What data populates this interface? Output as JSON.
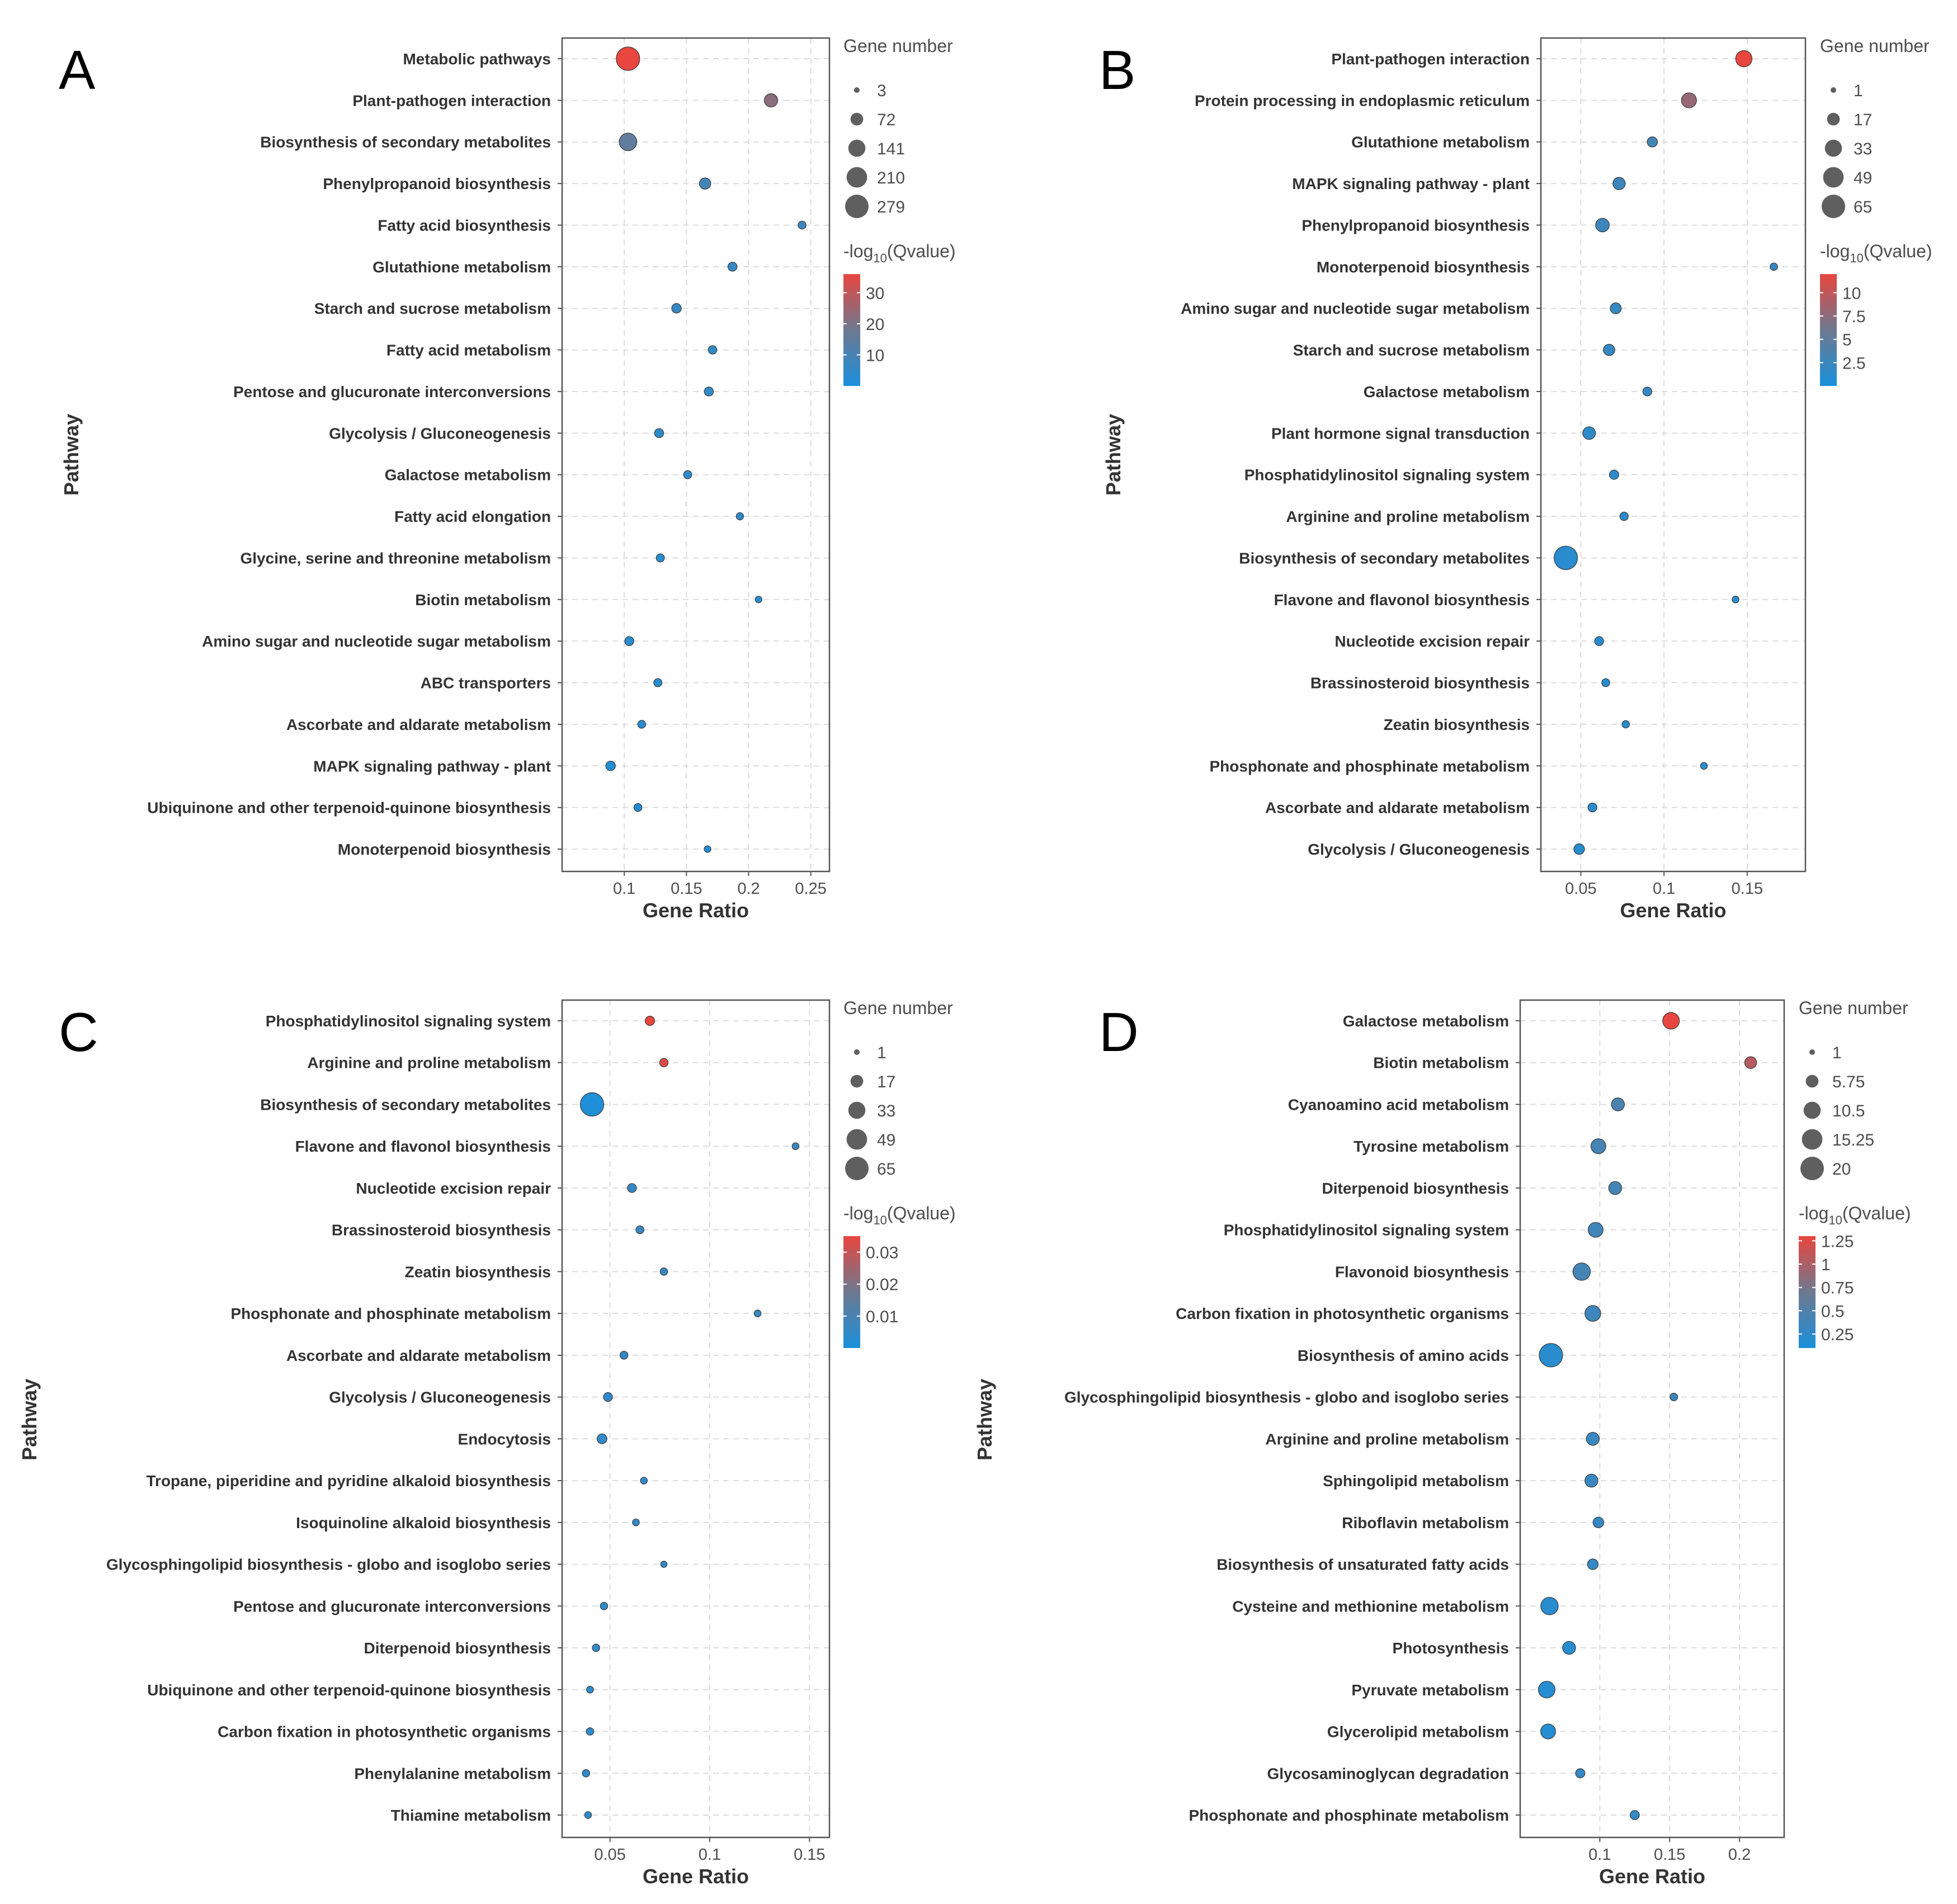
{
  "colors": {
    "low": "#1a90dc",
    "mid": "#6e7990",
    "high": "#e8463f",
    "grid": "#dcdcdc",
    "frame": "#555555"
  },
  "chart_data": [
    {
      "panel": "A",
      "type": "scatter",
      "xlabel": "Gene Ratio",
      "ylabel": "Pathway",
      "size_legend_title": "Gene number",
      "color_legend_title": "-log10(Qvalue)",
      "xlim": [
        0.05,
        0.265
      ],
      "xticks": [
        0.1,
        0.15,
        0.2,
        0.25
      ],
      "xtick_labels": [
        "0.1",
        "0.15",
        "0.2",
        "0.25"
      ],
      "size_range": [
        3,
        279
      ],
      "size_breaks": [
        3,
        72,
        141,
        210,
        279
      ],
      "size_break_labels": [
        "3",
        "72",
        "141",
        "210",
        "279"
      ],
      "color_range": [
        0,
        36
      ],
      "color_breaks": [
        10,
        20,
        30
      ],
      "color_break_labels": [
        "10",
        "20",
        "30"
      ],
      "points": [
        {
          "pathway": "Metabolic pathways",
          "ratio": 0.103,
          "genes": 279,
          "q": 36
        },
        {
          "pathway": "Plant-pathogen interaction",
          "ratio": 0.218,
          "genes": 80,
          "q": 22
        },
        {
          "pathway": "Biosynthesis of secondary metabolites",
          "ratio": 0.103,
          "genes": 150,
          "q": 15
        },
        {
          "pathway": "Phenylpropanoid biosynthesis",
          "ratio": 0.165,
          "genes": 55,
          "q": 9
        },
        {
          "pathway": "Fatty acid biosynthesis",
          "ratio": 0.243,
          "genes": 20,
          "q": 7
        },
        {
          "pathway": "Glutathione metabolism",
          "ratio": 0.187,
          "genes": 30,
          "q": 6
        },
        {
          "pathway": "Starch and sucrose metabolism",
          "ratio": 0.142,
          "genes": 35,
          "q": 6
        },
        {
          "pathway": "Fatty acid metabolism",
          "ratio": 0.171,
          "genes": 25,
          "q": 5
        },
        {
          "pathway": "Pentose and glucuronate interconversions",
          "ratio": 0.168,
          "genes": 30,
          "q": 5
        },
        {
          "pathway": "Glycolysis / Gluconeogenesis",
          "ratio": 0.128,
          "genes": 30,
          "q": 4
        },
        {
          "pathway": "Galactose metabolism",
          "ratio": 0.151,
          "genes": 22,
          "q": 4
        },
        {
          "pathway": "Fatty acid elongation",
          "ratio": 0.193,
          "genes": 15,
          "q": 4
        },
        {
          "pathway": "Glycine, serine and threonine metabolism",
          "ratio": 0.129,
          "genes": 22,
          "q": 3
        },
        {
          "pathway": "Biotin metabolism",
          "ratio": 0.208,
          "genes": 10,
          "q": 3
        },
        {
          "pathway": "Amino sugar and nucleotide sugar metabolism",
          "ratio": 0.104,
          "genes": 30,
          "q": 3
        },
        {
          "pathway": "ABC transporters",
          "ratio": 0.127,
          "genes": 22,
          "q": 3
        },
        {
          "pathway": "Ascorbate and aldarate metabolism",
          "ratio": 0.114,
          "genes": 20,
          "q": 3
        },
        {
          "pathway": "MAPK signaling pathway - plant",
          "ratio": 0.089,
          "genes": 35,
          "q": 2
        },
        {
          "pathway": "Ubiquinone and other terpenoid-quinone biosynthesis",
          "ratio": 0.111,
          "genes": 20,
          "q": 2
        },
        {
          "pathway": "Monoterpenoid biosynthesis",
          "ratio": 0.167,
          "genes": 10,
          "q": 2
        }
      ]
    },
    {
      "panel": "B",
      "type": "scatter",
      "xlabel": "Gene Ratio",
      "ylabel": "Pathway",
      "size_legend_title": "Gene number",
      "color_legend_title": "-log10(Qvalue)",
      "xlim": [
        0.026,
        0.185
      ],
      "xticks": [
        0.05,
        0.1,
        0.15
      ],
      "xtick_labels": [
        "0.05",
        "0.1",
        "0.15"
      ],
      "size_range": [
        1,
        65
      ],
      "size_breaks": [
        1,
        17,
        33,
        49,
        65
      ],
      "size_break_labels": [
        "1",
        "17",
        "33",
        "49",
        "65"
      ],
      "color_range": [
        0,
        12
      ],
      "color_breaks": [
        2.5,
        5,
        7.5,
        10
      ],
      "color_break_labels": [
        "2.5",
        "5",
        "7.5",
        "10"
      ],
      "points": [
        {
          "pathway": "Plant-pathogen interaction",
          "ratio": 0.148,
          "genes": 30,
          "q": 12
        },
        {
          "pathway": "Protein processing in endoplasmic reticulum",
          "ratio": 0.115,
          "genes": 25,
          "q": 8
        },
        {
          "pathway": "Glutathione metabolism",
          "ratio": 0.093,
          "genes": 10,
          "q": 3
        },
        {
          "pathway": "MAPK signaling pathway - plant",
          "ratio": 0.073,
          "genes": 16,
          "q": 2.5
        },
        {
          "pathway": "Phenylpropanoid biosynthesis",
          "ratio": 0.063,
          "genes": 20,
          "q": 2.5
        },
        {
          "pathway": "Monoterpenoid biosynthesis",
          "ratio": 0.166,
          "genes": 4,
          "q": 2
        },
        {
          "pathway": "Amino sugar and nucleotide sugar metabolism",
          "ratio": 0.071,
          "genes": 12,
          "q": 2
        },
        {
          "pathway": "Starch and sucrose metabolism",
          "ratio": 0.067,
          "genes": 13,
          "q": 2
        },
        {
          "pathway": "Galactose metabolism",
          "ratio": 0.09,
          "genes": 7,
          "q": 2
        },
        {
          "pathway": "Plant hormone signal transduction",
          "ratio": 0.055,
          "genes": 17,
          "q": 1.5
        },
        {
          "pathway": "Phosphatidylinositol signaling system",
          "ratio": 0.07,
          "genes": 8,
          "q": 1.5
        },
        {
          "pathway": "Arginine and proline metabolism",
          "ratio": 0.076,
          "genes": 6,
          "q": 1.5
        },
        {
          "pathway": "Biosynthesis of secondary metabolites",
          "ratio": 0.041,
          "genes": 65,
          "q": 1
        },
        {
          "pathway": "Flavone and flavonol biosynthesis",
          "ratio": 0.143,
          "genes": 3,
          "q": 1
        },
        {
          "pathway": "Nucleotide excision repair",
          "ratio": 0.061,
          "genes": 7,
          "q": 1
        },
        {
          "pathway": "Brassinosteroid biosynthesis",
          "ratio": 0.065,
          "genes": 5,
          "q": 1
        },
        {
          "pathway": "Zeatin biosynthesis",
          "ratio": 0.077,
          "genes": 4,
          "q": 1
        },
        {
          "pathway": "Phosphonate and phosphinate metabolism",
          "ratio": 0.124,
          "genes": 3,
          "q": 1
        },
        {
          "pathway": "Ascorbate and aldarate metabolism",
          "ratio": 0.057,
          "genes": 7,
          "q": 1
        },
        {
          "pathway": "Glycolysis / Gluconeogenesis",
          "ratio": 0.049,
          "genes": 11,
          "q": 1
        }
      ]
    },
    {
      "panel": "C",
      "type": "scatter",
      "xlabel": "Gene Ratio",
      "ylabel": "Pathway",
      "size_legend_title": "Gene number",
      "color_legend_title": "-log10(Qvalue)",
      "xlim": [
        0.026,
        0.16
      ],
      "xticks": [
        0.05,
        0.1,
        0.15
      ],
      "xtick_labels": [
        "0.05",
        "0.1",
        "0.15"
      ],
      "size_range": [
        1,
        65
      ],
      "size_breaks": [
        1,
        17,
        33,
        49,
        65
      ],
      "size_break_labels": [
        "1",
        "17",
        "33",
        "49",
        "65"
      ],
      "color_range": [
        0,
        0.035
      ],
      "color_breaks": [
        0.01,
        0.02,
        0.03
      ],
      "color_break_labels": [
        "0.01",
        "0.02",
        "0.03"
      ],
      "points": [
        {
          "pathway": "Phosphatidylinositol signaling system",
          "ratio": 0.07,
          "genes": 8,
          "q": 0.035
        },
        {
          "pathway": "Arginine and proline metabolism",
          "ratio": 0.077,
          "genes": 6,
          "q": 0.033
        },
        {
          "pathway": "Biosynthesis of secondary metabolites",
          "ratio": 0.041,
          "genes": 65,
          "q": 0.001
        },
        {
          "pathway": "Flavone and flavonol biosynthesis",
          "ratio": 0.143,
          "genes": 3,
          "q": 0.006
        },
        {
          "pathway": "Nucleotide excision repair",
          "ratio": 0.061,
          "genes": 7,
          "q": 0.006
        },
        {
          "pathway": "Brassinosteroid biosynthesis",
          "ratio": 0.065,
          "genes": 5,
          "q": 0.006
        },
        {
          "pathway": "Zeatin biosynthesis",
          "ratio": 0.077,
          "genes": 4,
          "q": 0.006
        },
        {
          "pathway": "Phosphonate and phosphinate metabolism",
          "ratio": 0.124,
          "genes": 3,
          "q": 0.006
        },
        {
          "pathway": "Ascorbate and aldarate metabolism",
          "ratio": 0.057,
          "genes": 5,
          "q": 0.005
        },
        {
          "pathway": "Glycolysis / Gluconeogenesis",
          "ratio": 0.049,
          "genes": 7,
          "q": 0.005
        },
        {
          "pathway": "Endocytosis",
          "ratio": 0.046,
          "genes": 9,
          "q": 0.005
        },
        {
          "pathway": "Tropane, piperidine and pyridine alkaloid biosynthesis",
          "ratio": 0.067,
          "genes": 3,
          "q": 0.005
        },
        {
          "pathway": "Isoquinoline alkaloid biosynthesis",
          "ratio": 0.063,
          "genes": 3,
          "q": 0.005
        },
        {
          "pathway": "Glycosphingolipid biosynthesis - globo and isoglobo series",
          "ratio": 0.077,
          "genes": 2,
          "q": 0.005
        },
        {
          "pathway": "Pentose and glucuronate interconversions",
          "ratio": 0.047,
          "genes": 4,
          "q": 0.004
        },
        {
          "pathway": "Diterpenoid biosynthesis",
          "ratio": 0.043,
          "genes": 4,
          "q": 0.004
        },
        {
          "pathway": "Ubiquinone and other terpenoid-quinone biosynthesis",
          "ratio": 0.04,
          "genes": 3,
          "q": 0.004
        },
        {
          "pathway": "Carbon fixation in photosynthetic organisms",
          "ratio": 0.04,
          "genes": 4,
          "q": 0.004
        },
        {
          "pathway": "Phenylalanine metabolism",
          "ratio": 0.038,
          "genes": 4,
          "q": 0.004
        },
        {
          "pathway": "Thiamine metabolism",
          "ratio": 0.039,
          "genes": 3,
          "q": 0.004
        }
      ]
    },
    {
      "panel": "D",
      "type": "scatter",
      "xlabel": "Gene Ratio",
      "ylabel": "Pathway",
      "size_legend_title": "Gene number",
      "color_legend_title": "-log10(Qvalue)",
      "xlim": [
        0.043,
        0.232
      ],
      "xticks": [
        0.1,
        0.15,
        0.2
      ],
      "xtick_labels": [
        "0.1",
        "0.15",
        "0.2"
      ],
      "size_range": [
        1,
        20
      ],
      "size_breaks": [
        1,
        5.75,
        10.5,
        15.25,
        20
      ],
      "size_break_labels": [
        "1",
        "5.75",
        "10.5",
        "15.25",
        "20"
      ],
      "color_range": [
        0.1,
        1.3
      ],
      "color_breaks": [
        0.25,
        0.5,
        0.75,
        1,
        1.25
      ],
      "color_break_labels": [
        "0.25",
        "0.5",
        "0.75",
        "1",
        "1.25"
      ],
      "points": [
        {
          "pathway": "Galactose metabolism",
          "ratio": 0.151,
          "genes": 10,
          "q": 1.3
        },
        {
          "pathway": "Biotin metabolism",
          "ratio": 0.208,
          "genes": 5,
          "q": 1.05
        },
        {
          "pathway": "Cyanoamino acid metabolism",
          "ratio": 0.113,
          "genes": 6,
          "q": 0.45
        },
        {
          "pathway": "Tyrosine metabolism",
          "ratio": 0.099,
          "genes": 8,
          "q": 0.42
        },
        {
          "pathway": "Diterpenoid biosynthesis",
          "ratio": 0.111,
          "genes": 6,
          "q": 0.4
        },
        {
          "pathway": "Phosphatidylinositol signaling system",
          "ratio": 0.097,
          "genes": 8,
          "q": 0.38
        },
        {
          "pathway": "Flavonoid biosynthesis",
          "ratio": 0.087,
          "genes": 11,
          "q": 0.4
        },
        {
          "pathway": "Carbon fixation in photosynthetic organisms",
          "ratio": 0.095,
          "genes": 9,
          "q": 0.36
        },
        {
          "pathway": "Biosynthesis of amino acids",
          "ratio": 0.065,
          "genes": 20,
          "q": 0.2
        },
        {
          "pathway": "Glycosphingolipid biosynthesis - globo and isoglobo series",
          "ratio": 0.153,
          "genes": 2,
          "q": 0.35
        },
        {
          "pathway": "Arginine and proline metabolism",
          "ratio": 0.095,
          "genes": 6,
          "q": 0.32
        },
        {
          "pathway": "Sphingolipid metabolism",
          "ratio": 0.094,
          "genes": 6,
          "q": 0.32
        },
        {
          "pathway": "Riboflavin metabolism",
          "ratio": 0.099,
          "genes": 4,
          "q": 0.3
        },
        {
          "pathway": "Biosynthesis of unsaturated fatty acids",
          "ratio": 0.095,
          "genes": 4,
          "q": 0.3
        },
        {
          "pathway": "Cysteine and methionine metabolism",
          "ratio": 0.064,
          "genes": 11,
          "q": 0.2
        },
        {
          "pathway": "Photosynthesis",
          "ratio": 0.078,
          "genes": 6,
          "q": 0.2
        },
        {
          "pathway": "Pyruvate metabolism",
          "ratio": 0.062,
          "genes": 10,
          "q": 0.18
        },
        {
          "pathway": "Glycerolipid metabolism",
          "ratio": 0.063,
          "genes": 8,
          "q": 0.18
        },
        {
          "pathway": "Glycosaminoglycan degradation",
          "ratio": 0.086,
          "genes": 3,
          "q": 0.3
        },
        {
          "pathway": "Phosphonate and phosphinate metabolism",
          "ratio": 0.125,
          "genes": 3,
          "q": 0.3
        }
      ]
    }
  ]
}
